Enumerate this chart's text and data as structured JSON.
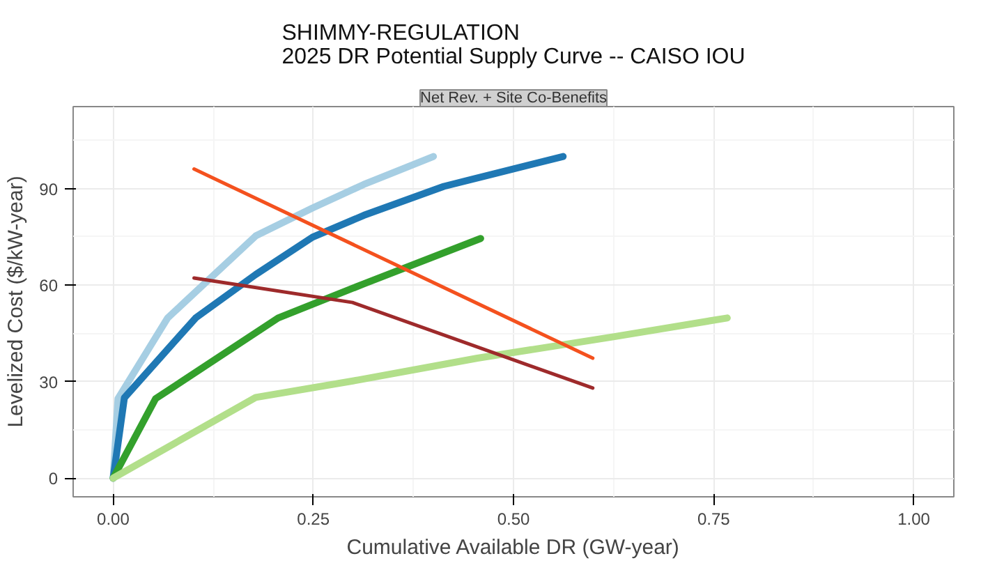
{
  "chart_data": {
    "type": "line",
    "title": "SHIMMY-REGULATION\n2025 DR Potential Supply Curve -- CAISO IOU",
    "subtitle": "Net Rev. + Site Co-Benefits",
    "xlabel": "Cumulative Available DR (GW-year)",
    "ylabel": "Levelized Cost ($/kW-year)",
    "xlim": [
      -0.05,
      1.05
    ],
    "ylim": [
      -5.8,
      115.5
    ],
    "xticks": [
      {
        "value": 0,
        "label": "0.00"
      },
      {
        "value": 0.25,
        "label": "0.25"
      },
      {
        "value": 0.5,
        "label": "0.50"
      },
      {
        "value": 0.75,
        "label": "0.75"
      },
      {
        "value": 1,
        "label": "1.00"
      }
    ],
    "yticks": [
      0,
      30,
      60,
      90
    ],
    "grid": true,
    "series": [
      {
        "color": "#a6cee3",
        "x": [
          0,
          0.006,
          0.068,
          0.178,
          0.249,
          0.313,
          0.4
        ],
        "values": [
          0,
          24.7,
          49.8,
          75.3,
          84,
          91.3,
          100
        ]
      },
      {
        "color": "#1f78b4",
        "x": [
          0,
          0.014,
          0.103,
          0.178,
          0.249,
          0.313,
          0.413,
          0.562
        ],
        "values": [
          0,
          25,
          49.8,
          63.3,
          74.9,
          81.7,
          90.7,
          100
        ]
      },
      {
        "color": "#33a02c",
        "x": [
          0,
          0.053,
          0.206,
          0.313,
          0.459
        ],
        "values": [
          0,
          24.7,
          49.8,
          60.4,
          74.5
        ]
      },
      {
        "color": "#b2df8a",
        "x": [
          0,
          0.178,
          0.306,
          0.455,
          0.626,
          0.767
        ],
        "values": [
          0,
          25.1,
          30.5,
          37.3,
          44,
          49.8
        ]
      },
      {
        "color": "#f4511e",
        "x": [
          0.101,
          0.599
        ],
        "values": [
          96.1,
          37.3
        ]
      },
      {
        "color": "#9e2a2b",
        "x": [
          0.101,
          0.299,
          0.599
        ],
        "values": [
          62.2,
          54.6,
          28
        ]
      }
    ]
  }
}
